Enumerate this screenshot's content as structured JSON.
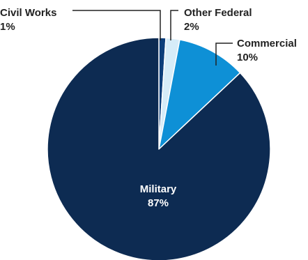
{
  "chart_data": {
    "type": "pie",
    "title": "",
    "slices": [
      {
        "label": "Military",
        "value": 87,
        "display": "87%",
        "color": "#0d2b52"
      },
      {
        "label": "Civil Works",
        "value": 1,
        "display": "1%",
        "color": "#0c3e7a"
      },
      {
        "label": "Other Federal",
        "value": 2,
        "display": "2%",
        "color": "#d6ecf8"
      },
      {
        "label": "Commercial",
        "value": 10,
        "display": "10%",
        "color": "#0e90d6"
      }
    ],
    "slice_border_color": "#ffffff",
    "leader_line_color": "#222222"
  }
}
